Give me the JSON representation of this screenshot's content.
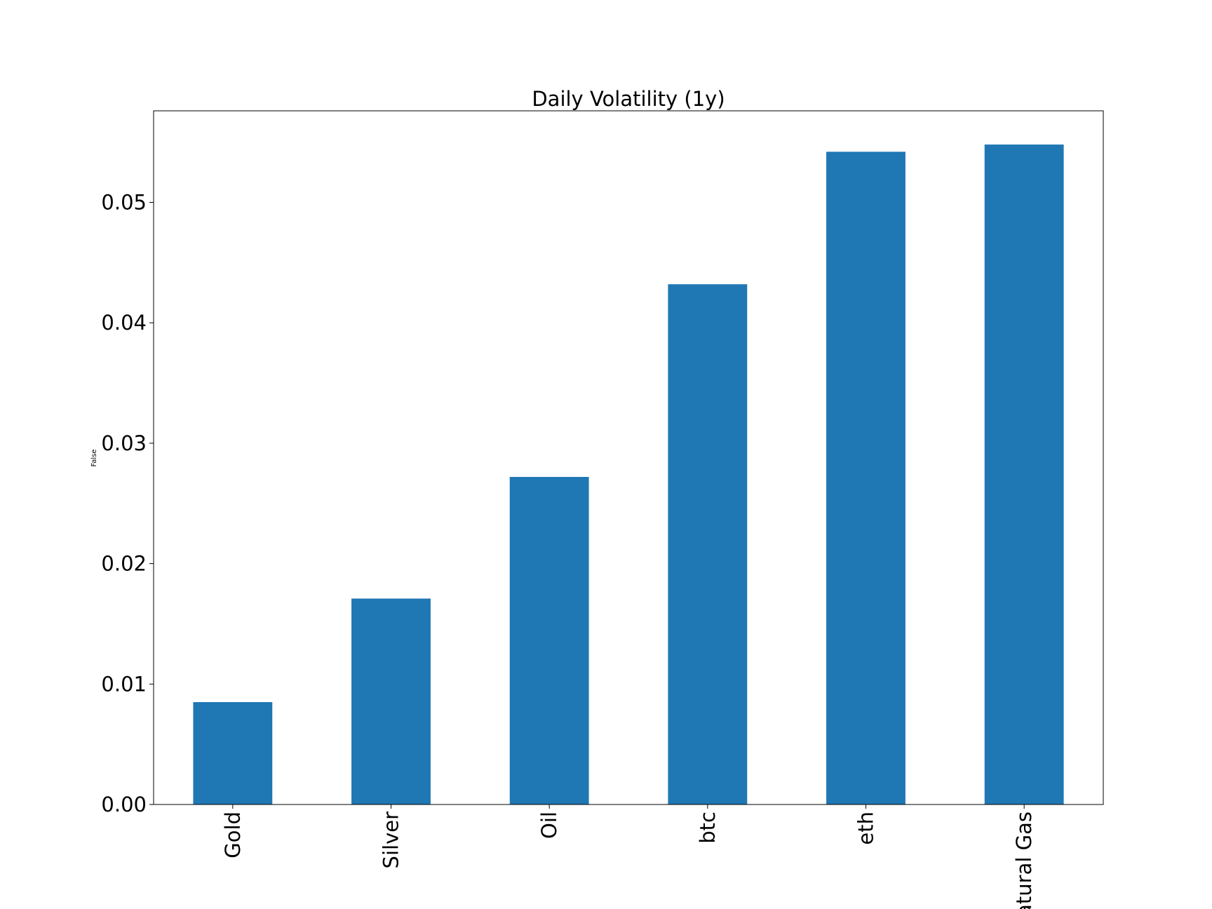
{
  "chart_data": {
    "type": "bar",
    "title": "Daily Volatility (1y)",
    "xlabel": "",
    "ylabel": "False",
    "categories": [
      "Gold",
      "Silver",
      "Oil",
      "btc",
      "eth",
      "Natural Gas"
    ],
    "values": [
      0.0085,
      0.0171,
      0.0272,
      0.0432,
      0.0542,
      0.0548
    ],
    "ylim": [
      0,
      0.0576
    ],
    "yticks": [
      0.0,
      0.01,
      0.02,
      0.03,
      0.04,
      0.05
    ],
    "ytick_labels": [
      "0.00",
      "0.01",
      "0.02",
      "0.03",
      "0.04",
      "0.05"
    ],
    "grid": false,
    "legend": "none",
    "bar_color": "#1f77b4"
  }
}
